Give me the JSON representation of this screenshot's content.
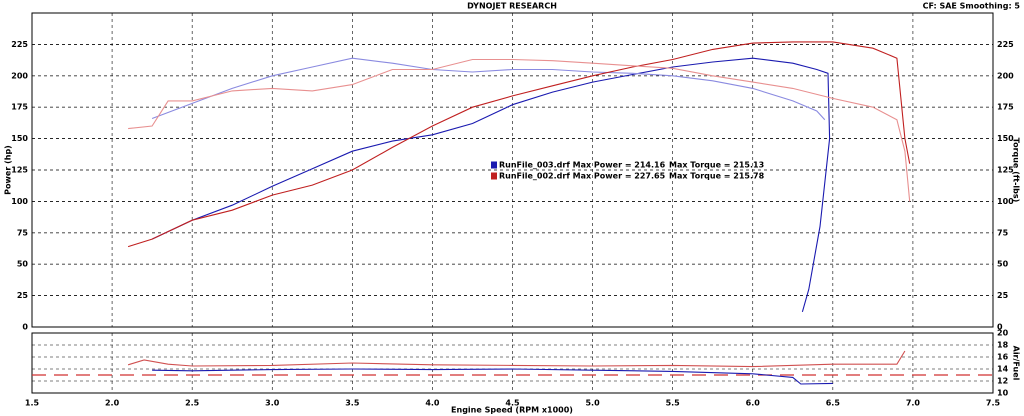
{
  "chart_data": [
    {
      "type": "line",
      "title": "DYNOJET RESEARCH",
      "subtitle": "CF: SAE  Smoothing: 5",
      "ylabel": "Power (hp)",
      "y2label": "Torque (ft-lbs)",
      "xlim": [
        1.5,
        7.5
      ],
      "ylim": [
        0,
        250
      ],
      "yticks": [
        0,
        25,
        50,
        75,
        100,
        125,
        150,
        175,
        200,
        225
      ],
      "y2lim": [
        0,
        250
      ],
      "y2ticks": [
        0,
        25,
        50,
        75,
        100,
        125,
        150,
        175,
        200,
        225
      ],
      "grid": true,
      "legend": [
        {
          "name": "RunFile_003.drf Max Power = 214.16",
          "torque": "Max Torque = 215.13",
          "color": "#1a1ab0"
        },
        {
          "name": "RunFile_002.drf Max Power = 227.65",
          "torque": "Max Torque = 215.78",
          "color": "#c02020"
        }
      ],
      "series": [
        {
          "color": "#1a1ab0",
          "x": [
            2.25,
            2.5,
            2.75,
            3.0,
            3.25,
            3.5,
            3.75,
            4.0,
            4.25,
            4.5,
            4.75,
            5.0,
            5.25,
            5.5,
            5.75,
            6.0,
            6.25,
            6.4,
            6.47,
            6.48,
            6.42,
            6.35,
            6.31
          ],
          "values": [
            70,
            85,
            97,
            112,
            126,
            140,
            148,
            153,
            162,
            177,
            187,
            195,
            201,
            207,
            211,
            214,
            210,
            205,
            202,
            150,
            80,
            30,
            12
          ]
        },
        {
          "color": "#8a8ae0",
          "axis": "y2",
          "x": [
            2.25,
            2.5,
            2.75,
            3.0,
            3.25,
            3.5,
            3.75,
            4.0,
            4.25,
            4.5,
            4.75,
            5.0,
            5.25,
            5.5,
            5.75,
            6.0,
            6.25,
            6.4,
            6.45
          ],
          "values": [
            166,
            178,
            190,
            200,
            207,
            214,
            210,
            205,
            203,
            205,
            205,
            203,
            202,
            200,
            196,
            190,
            180,
            172,
            165
          ]
        },
        {
          "color": "#c02020",
          "x": [
            2.1,
            2.25,
            2.5,
            2.75,
            3.0,
            3.25,
            3.5,
            3.75,
            4.0,
            4.25,
            4.5,
            4.75,
            5.0,
            5.25,
            5.5,
            5.75,
            6.0,
            6.25,
            6.5,
            6.75,
            6.9,
            6.95,
            6.98
          ],
          "values": [
            64,
            70,
            85,
            93,
            105,
            113,
            125,
            143,
            160,
            175,
            184,
            192,
            200,
            207,
            213,
            221,
            226,
            227,
            227,
            222,
            214,
            150,
            130
          ]
        },
        {
          "color": "#e89090",
          "axis": "y2",
          "x": [
            2.1,
            2.25,
            2.35,
            2.5,
            2.75,
            3.0,
            3.25,
            3.5,
            3.75,
            4.0,
            4.25,
            4.5,
            4.75,
            5.0,
            5.25,
            5.5,
            5.75,
            6.0,
            6.25,
            6.5,
            6.75,
            6.9,
            6.95,
            6.98
          ],
          "values": [
            158,
            160,
            180,
            180,
            188,
            190,
            188,
            193,
            205,
            205,
            213,
            213,
            212,
            210,
            208,
            206,
            200,
            195,
            190,
            182,
            175,
            165,
            140,
            100
          ]
        }
      ]
    },
    {
      "type": "line",
      "xlabel": "Engine Speed (RPM x1000)",
      "y2label": "Air/Fuel",
      "xlim": [
        1.5,
        7.5
      ],
      "xticks": [
        {
          "value": 1.5,
          "label": "1.5"
        },
        {
          "value": 2,
          "label": "2.0"
        },
        {
          "value": 2.5,
          "label": "2.5"
        },
        {
          "value": 3,
          "label": "3.0"
        },
        {
          "value": 3.5,
          "label": "3.5"
        },
        {
          "value": 4,
          "label": "4.0"
        },
        {
          "value": 4.5,
          "label": "4.5"
        },
        {
          "value": 5,
          "label": "5.0"
        },
        {
          "value": 5.5,
          "label": "5.5"
        },
        {
          "value": 6,
          "label": "6.0"
        },
        {
          "value": 6.5,
          "label": "6.5"
        },
        {
          "value": 7,
          "label": "7.0"
        },
        {
          "value": 7.5,
          "label": "7.5"
        }
      ],
      "y2lim": [
        10,
        20
      ],
      "y2ticks": [
        10,
        12,
        14,
        16,
        18,
        20
      ],
      "grid": true,
      "reference": 13,
      "reference_color": "#d03030",
      "series": [
        {
          "color": "#1a1ab0",
          "axis": "y2",
          "x": [
            2.25,
            2.5,
            3.0,
            3.5,
            4.0,
            4.5,
            5.0,
            5.5,
            6.0,
            6.25,
            6.3,
            6.5
          ],
          "values": [
            13.8,
            13.7,
            13.9,
            14.0,
            13.9,
            14.0,
            13.8,
            13.6,
            13.2,
            12.6,
            11.5,
            11.6
          ]
        },
        {
          "color": "#d05050",
          "axis": "y2",
          "x": [
            2.1,
            2.2,
            2.35,
            2.5,
            3.0,
            3.5,
            4.0,
            4.5,
            5.0,
            5.5,
            6.0,
            6.5,
            6.9,
            6.95
          ],
          "values": [
            14.7,
            15.5,
            14.8,
            14.5,
            14.6,
            15.0,
            14.7,
            14.6,
            14.5,
            14.6,
            14.4,
            14.8,
            14.8,
            17.0
          ]
        }
      ]
    }
  ]
}
